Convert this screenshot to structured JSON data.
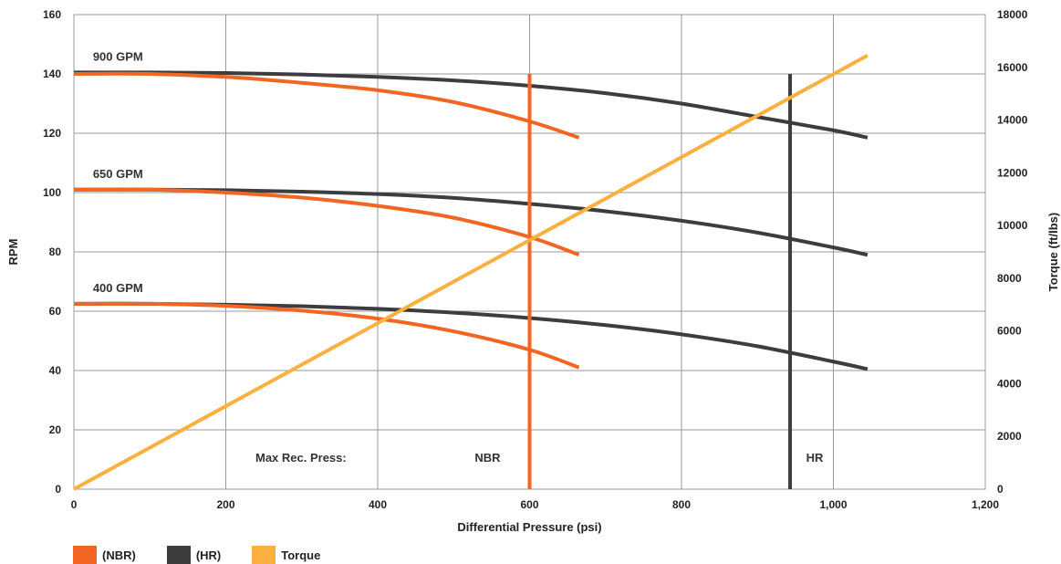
{
  "chart_data": {
    "type": "line",
    "xlabel": "Differential Pressure (psi)",
    "ylabel": "RPM",
    "y2label": "Torque (ft/lbs)",
    "xlim": [
      0,
      1200
    ],
    "ylim": [
      0,
      160
    ],
    "y2lim": [
      0,
      18000
    ],
    "x_ticks": [
      "0",
      "200",
      "400",
      "600",
      "800",
      "1,000",
      "1,200"
    ],
    "x_tick_values": [
      0,
      200,
      400,
      600,
      800,
      1000,
      1200
    ],
    "y_ticks": [
      "0",
      "20",
      "40",
      "60",
      "80",
      "100",
      "120",
      "140",
      "160"
    ],
    "y_tick_values": [
      0,
      20,
      40,
      60,
      80,
      100,
      120,
      140,
      160
    ],
    "y2_ticks": [
      "0",
      "2000",
      "4000",
      "6000",
      "8000",
      "10000",
      "12000",
      "14000",
      "16000",
      "18000"
    ],
    "y2_tick_values": [
      0,
      2000,
      4000,
      6000,
      8000,
      10000,
      12000,
      14000,
      16000,
      18000
    ],
    "grid": true,
    "legend_position": "bottom-left",
    "legend": [
      {
        "label": "(NBR)",
        "color": "#f26522"
      },
      {
        "label": "(HR)",
        "color": "#3d3d3f"
      },
      {
        "label": "Torque",
        "color": "#fbb040"
      }
    ],
    "series": [
      {
        "flow": "900 GPM",
        "group": "NBR",
        "axis": "left",
        "color": "#f26522",
        "x": [
          0,
          100,
          200,
          300,
          400,
          500,
          600,
          665
        ],
        "y": [
          140,
          140,
          139,
          137,
          134.5,
          130.5,
          124,
          118.5
        ]
      },
      {
        "flow": "900 GPM",
        "group": "HR",
        "axis": "left",
        "color": "#3d3d3f",
        "x": [
          0,
          100,
          200,
          300,
          400,
          500,
          600,
          700,
          800,
          900,
          1000,
          1045
        ],
        "y": [
          140.5,
          140.5,
          140.3,
          139.8,
          139,
          137.8,
          136,
          133.5,
          130,
          125.5,
          121,
          118.5
        ]
      },
      {
        "flow": "650 GPM",
        "group": "NBR",
        "axis": "left",
        "color": "#f26522",
        "x": [
          0,
          100,
          200,
          300,
          400,
          500,
          600,
          665
        ],
        "y": [
          101,
          101,
          100,
          98.3,
          95.5,
          91.5,
          85,
          79
        ]
      },
      {
        "flow": "650 GPM",
        "group": "HR",
        "axis": "left",
        "color": "#3d3d3f",
        "x": [
          0,
          100,
          200,
          300,
          400,
          500,
          600,
          700,
          800,
          900,
          1000,
          1045
        ],
        "y": [
          101,
          101,
          100.8,
          100.3,
          99.5,
          98.2,
          96.2,
          93.7,
          90.5,
          86.5,
          81.5,
          79
        ]
      },
      {
        "flow": "400 GPM",
        "group": "NBR",
        "axis": "left",
        "color": "#f26522",
        "x": [
          0,
          100,
          200,
          300,
          400,
          500,
          600,
          665
        ],
        "y": [
          62.5,
          62.5,
          61.8,
          60.2,
          57.5,
          53.2,
          47,
          41
        ]
      },
      {
        "flow": "400 GPM",
        "group": "HR",
        "axis": "left",
        "color": "#3d3d3f",
        "x": [
          0,
          100,
          200,
          300,
          400,
          500,
          600,
          700,
          800,
          900,
          1000,
          1045
        ],
        "y": [
          62.5,
          62.5,
          62.2,
          61.7,
          60.8,
          59.5,
          57.7,
          55.3,
          52.2,
          48.2,
          43,
          40.5
        ]
      },
      {
        "name": "Torque",
        "group": "Torque",
        "axis": "right",
        "color": "#fbb040",
        "x": [
          0,
          1045
        ],
        "y": [
          0,
          16450
        ]
      }
    ],
    "max_rec_press": [
      {
        "label": "NBR",
        "x": 600,
        "color": "#f26522"
      },
      {
        "label": "HR",
        "x": 943,
        "color": "#3d3d3f"
      }
    ],
    "annotations": {
      "flow_labels": [
        {
          "text": "900 GPM",
          "x": 25,
          "y": 144.5
        },
        {
          "text": "650 GPM",
          "x": 25,
          "y": 105
        },
        {
          "text": "400 GPM",
          "x": 25,
          "y": 66.5
        }
      ],
      "max_rec_label": "Max Rec. Press:"
    }
  }
}
